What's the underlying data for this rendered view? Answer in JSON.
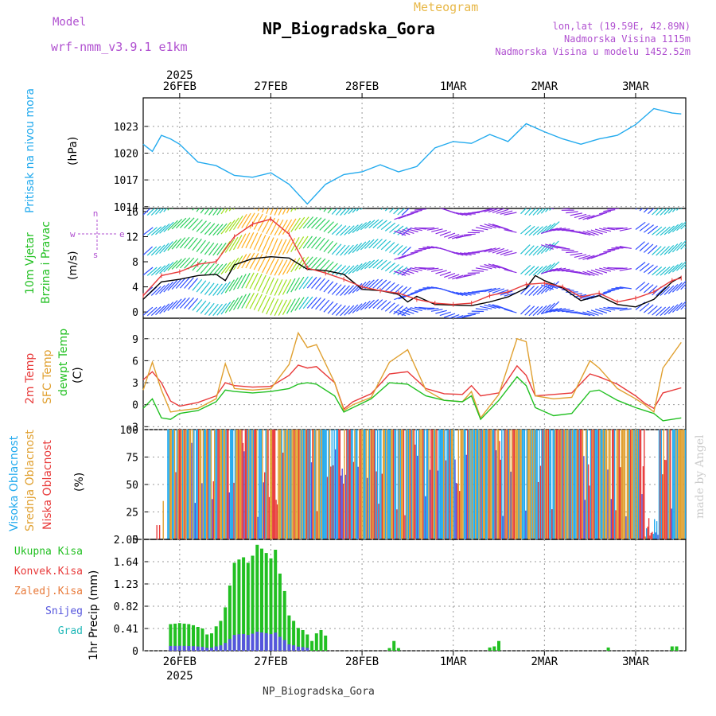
{
  "header": {
    "model_label": "Model",
    "model_name": "wrf-nmm_v3.9.1 e1km",
    "meteogram": "Meteogram",
    "station": "NP_Biogradska_Gora",
    "lonlat": "lon,lat (19.59E, 42.89N)",
    "altitude": "Nadmorska Visina 1115m",
    "model_altitude": "Nadmorska Visina u modelu 1452.52m",
    "footer_station": "NP_Biogradska_Gora",
    "watermark": "made by Angel",
    "colors": {
      "model": "#b050d0",
      "meteogram": "#e8b848",
      "station": "#000000",
      "info": "#b050d0"
    }
  },
  "time_axis": {
    "year": "2025",
    "labels": [
      "26FEB",
      "27FEB",
      "28FEB",
      "1MAR",
      "2MAR",
      "3MAR"
    ],
    "start_day": 25.6,
    "end_day": 31.55
  },
  "chart_data": [
    {
      "type": "line",
      "id": "pressure",
      "ylabel": "Pritisak na nivou mora",
      "unit": "(hPa)",
      "yticks": [
        1014,
        1017,
        1020,
        1023
      ],
      "ylim": [
        1013.8,
        1026.2
      ],
      "grid": true,
      "series": [
        {
          "color": "#22aaee",
          "x": [
            25.6,
            25.7,
            25.8,
            25.9,
            26.0,
            26.2,
            26.4,
            26.6,
            26.8,
            27.0,
            27.2,
            27.4,
            27.6,
            27.8,
            28.0,
            28.2,
            28.4,
            28.6,
            28.8,
            29.0,
            29.2,
            29.4,
            29.6,
            29.8,
            30.0,
            30.2,
            30.4,
            30.6,
            30.8,
            31.0,
            31.2,
            31.4,
            31.5
          ],
          "y": [
            1021.0,
            1020.2,
            1022.0,
            1021.6,
            1021.0,
            1019.0,
            1018.6,
            1017.5,
            1017.3,
            1017.8,
            1016.5,
            1014.3,
            1016.5,
            1017.6,
            1017.9,
            1018.7,
            1017.9,
            1018.5,
            1020.6,
            1021.3,
            1021.1,
            1022.1,
            1021.3,
            1023.3,
            1022.4,
            1021.6,
            1021.0,
            1021.6,
            1022.0,
            1023.2,
            1025.0,
            1024.5,
            1024.4
          ]
        }
      ]
    },
    {
      "type": "line",
      "id": "wind",
      "ylabel": [
        "10m Vjetar",
        "Brzina i Pravac"
      ],
      "unit": "(m/s)",
      "yticks": [
        0,
        4,
        8,
        12,
        16
      ],
      "ylim": [
        -1,
        16.5
      ],
      "grid": false,
      "compass": {
        "w": "w",
        "n": "n",
        "e": "e",
        "s": "s"
      },
      "series": [
        {
          "color": "#000000",
          "x": [
            25.6,
            25.8,
            26.0,
            26.2,
            26.4,
            26.5,
            26.6,
            26.8,
            27.0,
            27.2,
            27.4,
            27.6,
            27.8,
            28.0,
            28.2,
            28.4,
            28.5,
            28.6,
            28.8,
            29.0,
            29.2,
            29.4,
            29.6,
            29.8,
            29.9,
            30.0,
            30.2,
            30.4,
            30.6,
            30.8,
            31.0,
            31.2,
            31.4,
            31.5
          ],
          "y": [
            2.0,
            4.8,
            5.2,
            5.8,
            6.0,
            5.0,
            7.5,
            8.5,
            8.8,
            8.6,
            6.8,
            6.6,
            6.0,
            3.6,
            3.4,
            2.8,
            1.6,
            2.5,
            1.2,
            1.1,
            1.0,
            1.6,
            2.4,
            3.8,
            5.8,
            5.0,
            3.8,
            1.8,
            2.6,
            1.2,
            0.8,
            2.0,
            4.8,
            5.6
          ]
        },
        {
          "color": "#e83a3a",
          "x": [
            25.6,
            25.8,
            26.0,
            26.2,
            26.4,
            26.6,
            26.8,
            27.0,
            27.2,
            27.4,
            27.6,
            27.8,
            28.0,
            28.2,
            28.4,
            28.6,
            28.8,
            29.0,
            29.2,
            29.4,
            29.6,
            29.8,
            30.0,
            30.2,
            30.4,
            30.6,
            30.8,
            31.0,
            31.2,
            31.4,
            31.5
          ],
          "y": [
            2.6,
            5.8,
            6.4,
            7.6,
            8.0,
            12.0,
            14.0,
            14.8,
            12.4,
            7.0,
            6.2,
            5.2,
            4.0,
            3.4,
            3.0,
            2.0,
            1.4,
            1.2,
            1.4,
            2.6,
            3.2,
            4.4,
            4.6,
            4.0,
            2.4,
            3.0,
            1.6,
            2.2,
            3.2,
            5.0,
            5.4
          ]
        }
      ]
    },
    {
      "type": "line",
      "id": "temperature",
      "ylabel": [
        "2m Temp",
        "SFC Temp",
        "dewpt Temp"
      ],
      "unit": "(C)",
      "yticks": [
        -3,
        0,
        3,
        6,
        9
      ],
      "ylim": [
        -3.4,
        11.8
      ],
      "grid": true,
      "series": [
        {
          "name": "2m Temp",
          "color": "#e83a3a",
          "x": [
            25.6,
            25.7,
            25.8,
            25.9,
            26.0,
            26.2,
            26.4,
            26.5,
            26.6,
            26.8,
            27.0,
            27.2,
            27.3,
            27.4,
            27.5,
            27.7,
            27.8,
            27.9,
            28.1,
            28.3,
            28.5,
            28.7,
            28.9,
            29.1,
            29.2,
            29.3,
            29.5,
            29.7,
            29.8,
            29.9,
            30.1,
            30.3,
            30.5,
            30.6,
            30.8,
            31.0,
            31.1,
            31.2,
            31.3,
            31.5
          ],
          "y": [
            3.4,
            4.5,
            3.0,
            0.5,
            -0.2,
            0.3,
            1.2,
            3.0,
            2.6,
            2.4,
            2.5,
            4.0,
            5.4,
            5.0,
            5.2,
            3.0,
            -0.6,
            0.4,
            1.5,
            4.2,
            4.5,
            2.2,
            1.5,
            1.4,
            2.6,
            1.2,
            1.6,
            5.3,
            4.0,
            1.2,
            1.4,
            1.6,
            4.2,
            3.8,
            2.8,
            1.2,
            0.2,
            -0.5,
            1.6,
            2.3
          ]
        },
        {
          "name": "SFC Temp",
          "color": "#e0a030",
          "x": [
            25.6,
            25.7,
            25.8,
            25.9,
            26.0,
            26.2,
            26.4,
            26.5,
            26.6,
            26.8,
            27.0,
            27.2,
            27.3,
            27.4,
            27.5,
            27.7,
            27.8,
            27.9,
            28.1,
            28.3,
            28.5,
            28.7,
            28.9,
            29.1,
            29.2,
            29.3,
            29.5,
            29.7,
            29.8,
            29.9,
            30.1,
            30.3,
            30.5,
            30.6,
            30.8,
            31.0,
            31.1,
            31.2,
            31.3,
            31.5
          ],
          "y": [
            2.0,
            5.8,
            2.0,
            -1.0,
            -0.8,
            -0.5,
            0.8,
            5.6,
            2.2,
            2.0,
            2.2,
            5.5,
            9.8,
            7.8,
            8.2,
            3.0,
            -0.8,
            0.0,
            1.0,
            5.8,
            7.5,
            2.0,
            0.6,
            0.4,
            1.8,
            -1.8,
            1.4,
            9.0,
            8.6,
            1.2,
            0.8,
            1.0,
            6.0,
            5.0,
            2.2,
            0.8,
            0.0,
            -1.0,
            5.0,
            8.5
          ]
        },
        {
          "name": "dewpt Temp",
          "color": "#22c022",
          "x": [
            25.6,
            25.7,
            25.8,
            25.9,
            26.0,
            26.2,
            26.4,
            26.5,
            26.6,
            26.8,
            27.0,
            27.2,
            27.3,
            27.4,
            27.5,
            27.7,
            27.8,
            27.9,
            28.1,
            28.3,
            28.5,
            28.7,
            28.9,
            29.1,
            29.2,
            29.3,
            29.5,
            29.7,
            29.8,
            29.9,
            30.1,
            30.3,
            30.5,
            30.6,
            30.8,
            31.0,
            31.1,
            31.2,
            31.3,
            31.5
          ],
          "y": [
            -0.5,
            0.8,
            -1.8,
            -2.0,
            -1.2,
            -0.8,
            0.4,
            2.0,
            1.8,
            1.6,
            1.8,
            2.2,
            2.8,
            3.0,
            2.8,
            1.2,
            -1.0,
            -0.4,
            0.8,
            3.0,
            2.8,
            1.2,
            0.6,
            0.4,
            1.2,
            -2.0,
            0.6,
            3.8,
            2.6,
            -0.4,
            -1.5,
            -1.2,
            1.8,
            2.0,
            0.6,
            -0.4,
            -0.8,
            -1.2,
            -2.2,
            -1.8
          ]
        }
      ]
    },
    {
      "type": "bar",
      "id": "cloud",
      "ylabel": [
        "Visoka Oblacnost",
        "Srednja Oblacnost",
        "Niska Oblacnost"
      ],
      "unit": "(%)",
      "yticks": [
        0,
        25,
        50,
        75,
        100
      ],
      "ylim": [
        0,
        100
      ],
      "grid": true,
      "colors": {
        "high": "#22aaee",
        "mid": "#e0a030",
        "low": "#e83a3a",
        "extra": "#5555dd"
      },
      "series": [
        {
          "name": "Visoka Oblacnost",
          "color": "#22aaee",
          "note": "intermittent 0-100% through period"
        },
        {
          "name": "Srednja Oblacnost",
          "color": "#e0a030",
          "note": "mostly 100% from 25.85 to 31.5"
        },
        {
          "name": "Niska Oblacnost",
          "color": "#e83a3a",
          "note": "intermittent 100%"
        }
      ]
    },
    {
      "type": "bar",
      "id": "precip",
      "ylabel": "1hr Precip (mm)",
      "unit": "(mm)",
      "yticks": [
        0,
        0.41,
        0.82,
        1.23,
        1.64,
        2.05
      ],
      "ylim": [
        0,
        2.05
      ],
      "grid": true,
      "legend": [
        {
          "label": "Ukupna Kisa",
          "color": "#22c022"
        },
        {
          "label": "Konvek.Kisa",
          "color": "#e83a3a"
        },
        {
          "label": "Zaledj.Kisa",
          "color": "#e87a3a"
        },
        {
          "label": "Snijeg",
          "color": "#5555dd"
        },
        {
          "label": "Grad",
          "color": "#22b8b8"
        }
      ],
      "series": [
        {
          "name": "Ukupna Kisa",
          "color": "#22c022",
          "x": [
            25.6,
            25.65,
            25.7,
            25.75,
            25.8,
            25.85,
            25.9,
            25.95,
            26.0,
            26.05,
            26.1,
            26.15,
            26.2,
            26.25,
            26.3,
            26.35,
            26.4,
            26.45,
            26.5,
            26.55,
            26.6,
            26.65,
            26.7,
            26.75,
            26.8,
            26.85,
            26.9,
            26.95,
            27.0,
            27.05,
            27.1,
            27.15,
            27.2,
            27.25,
            27.3,
            27.35,
            27.4,
            27.45,
            27.5,
            27.55,
            27.6,
            28.3,
            28.35,
            28.4,
            29.4,
            29.45,
            29.5,
            30.7,
            31.4,
            31.45
          ],
          "y": [
            0.0,
            0.0,
            0.0,
            0.0,
            0.0,
            0.0,
            0.49,
            0.5,
            0.51,
            0.5,
            0.49,
            0.47,
            0.44,
            0.41,
            0.3,
            0.32,
            0.45,
            0.55,
            0.8,
            1.2,
            1.62,
            1.68,
            1.72,
            1.62,
            1.75,
            1.95,
            1.88,
            1.8,
            1.7,
            1.86,
            1.42,
            1.1,
            0.65,
            0.55,
            0.42,
            0.38,
            0.3,
            0.18,
            0.32,
            0.38,
            0.28,
            0.05,
            0.18,
            0.05,
            0.06,
            0.08,
            0.18,
            0.06,
            0.08,
            0.08
          ]
        }
      ]
    }
  ]
}
